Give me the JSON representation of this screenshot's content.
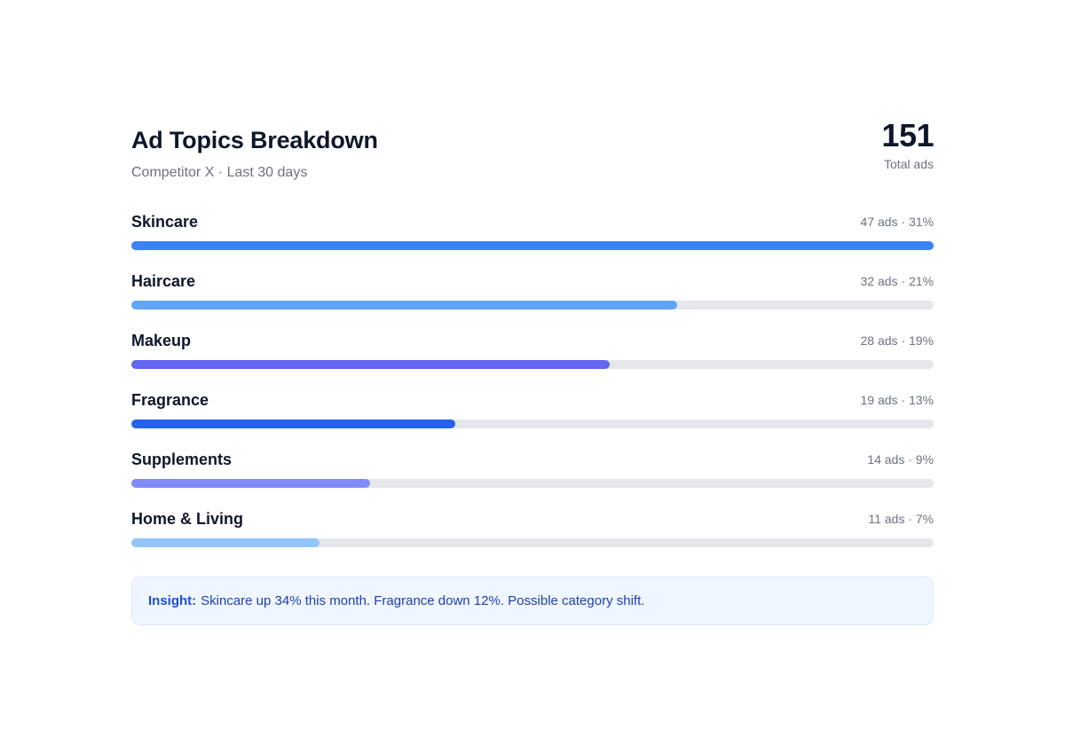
{
  "header": {
    "title": "Ad Topics Breakdown",
    "subtitle": "Competitor X · Last 30 days",
    "total_value": "151",
    "total_label": "Total ads"
  },
  "chart_data": {
    "type": "bar",
    "orientation": "horizontal",
    "title": "Ad Topics Breakdown",
    "subtitle": "Competitor X · Last 30 days",
    "total": 151,
    "categories": [
      "Skincare",
      "Haircare",
      "Makeup",
      "Fragrance",
      "Supplements",
      "Home & Living"
    ],
    "series": [
      {
        "values": [
          47,
          32,
          28,
          19,
          14,
          11
        ]
      }
    ],
    "max_value": 47,
    "colors": [
      "#3b82f6",
      "#60a5fa",
      "#6366f1",
      "#2563eb",
      "#818cf8",
      "#93c5fd"
    ],
    "track_color": "#e5e7eb",
    "rows": [
      {
        "label": "Skincare",
        "meta": "47 ads · 31%"
      },
      {
        "label": "Haircare",
        "meta": "32 ads · 21%"
      },
      {
        "label": "Makeup",
        "meta": "28 ads · 19%"
      },
      {
        "label": "Fragrance",
        "meta": "19 ads · 13%"
      },
      {
        "label": "Supplements",
        "meta": "14 ads · 9%"
      },
      {
        "label": "Home & Living",
        "meta": "11 ads · 7%"
      }
    ]
  },
  "insight": {
    "label": "Insight:",
    "text": "Skincare up 34% this month. Fragrance down 12%. Possible category shift."
  }
}
